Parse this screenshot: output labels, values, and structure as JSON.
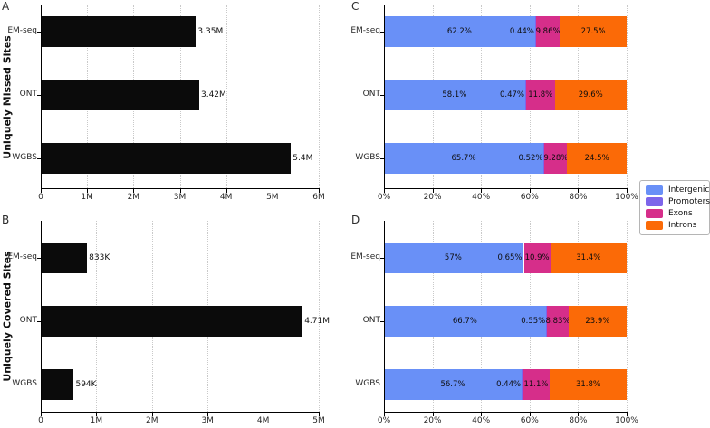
{
  "figure": {
    "background": "#ffffff"
  },
  "panels": {
    "A": {
      "letter": "A",
      "ylabel": "Uniquely Missed Sites"
    },
    "B": {
      "letter": "B",
      "ylabel": "Uniquely Covered Sites"
    },
    "C": {
      "letter": "C"
    },
    "D": {
      "letter": "D"
    }
  },
  "colors": {
    "bar_black": "#0b0b0b",
    "intergenic": "#6990F7",
    "promoters": "#7D65EA",
    "exons": "#D62E8A",
    "introns": "#FB6A07",
    "grid": "#c9c9c9"
  },
  "legend": {
    "entries": [
      {
        "label": "Intergenic",
        "color": "#6990F7"
      },
      {
        "label": "Promoters",
        "color": "#7D65EA"
      },
      {
        "label": "Exons",
        "color": "#D62E8A"
      },
      {
        "label": "Introns",
        "color": "#FB6A07"
      }
    ]
  },
  "chart_data": [
    {
      "id": "A",
      "type": "bar",
      "orientation": "horizontal",
      "title": "Uniquely Missed Sites",
      "categories": [
        "EM-seq",
        "ONT",
        "WGBS"
      ],
      "values": [
        3350000,
        3420000,
        5400000
      ],
      "value_labels": [
        "3.35M",
        "3.42M",
        "5.4M"
      ],
      "xlim": [
        0,
        6000000
      ],
      "xtick_labels": [
        "0",
        "1M",
        "2M",
        "3M",
        "4M",
        "5M",
        "6M"
      ],
      "bar_color": "#0b0b0b",
      "grid": true
    },
    {
      "id": "B",
      "type": "bar",
      "orientation": "horizontal",
      "title": "Uniquely Covered Sites",
      "categories": [
        "EM-seq",
        "ONT",
        "WGBS"
      ],
      "values": [
        833000,
        4710000,
        594000
      ],
      "value_labels": [
        "833K",
        "4.71M",
        "594K"
      ],
      "xlim": [
        0,
        5000000
      ],
      "xtick_labels": [
        "0",
        "1M",
        "2M",
        "3M",
        "4M",
        "5M"
      ],
      "bar_color": "#0b0b0b",
      "grid": true
    },
    {
      "id": "C",
      "type": "stacked-bar",
      "orientation": "horizontal",
      "categories": [
        "EM-seq",
        "ONT",
        "WGBS"
      ],
      "xlim": [
        0,
        100
      ],
      "xtick_labels": [
        "0%",
        "20%",
        "40%",
        "60%",
        "80%",
        "100%"
      ],
      "grid": true,
      "series": [
        {
          "name": "Intergenic",
          "color": "#6990F7",
          "values": [
            62.2,
            58.1,
            65.7
          ],
          "labels": [
            "62.2%",
            "58.1%",
            "65.7%"
          ]
        },
        {
          "name": "Promoters",
          "color": "#7D65EA",
          "values": [
            0.44,
            0.47,
            0.52
          ],
          "labels": [
            "0.44%",
            "0.47%",
            "0.52%"
          ]
        },
        {
          "name": "Exons",
          "color": "#D62E8A",
          "values": [
            9.86,
            11.8,
            9.28
          ],
          "labels": [
            "9.86%",
            "11.8%",
            "9.28%"
          ]
        },
        {
          "name": "Introns",
          "color": "#FB6A07",
          "values": [
            27.5,
            29.6,
            24.5
          ],
          "labels": [
            "27.5%",
            "29.6%",
            "24.5%"
          ]
        }
      ]
    },
    {
      "id": "D",
      "type": "stacked-bar",
      "orientation": "horizontal",
      "categories": [
        "EM-seq",
        "ONT",
        "WGBS"
      ],
      "xlim": [
        0,
        100
      ],
      "xtick_labels": [
        "0%",
        "20%",
        "40%",
        "60%",
        "80%",
        "100%"
      ],
      "grid": true,
      "series": [
        {
          "name": "Intergenic",
          "color": "#6990F7",
          "values": [
            57,
            66.7,
            56.7
          ],
          "labels": [
            "57%",
            "66.7%",
            "56.7%"
          ]
        },
        {
          "name": "Promoters",
          "color": "#7D65EA",
          "values": [
            0.65,
            0.55,
            0.44
          ],
          "labels": [
            "0.65%",
            "0.55%",
            "0.44%"
          ]
        },
        {
          "name": "Exons",
          "color": "#D62E8A",
          "values": [
            10.9,
            8.83,
            11.1
          ],
          "labels": [
            "10.9%",
            "8.83%",
            "11.1%"
          ]
        },
        {
          "name": "Introns",
          "color": "#FB6A07",
          "values": [
            31.4,
            23.9,
            31.8
          ],
          "labels": [
            "31.4%",
            "23.9%",
            "31.8%"
          ]
        }
      ]
    }
  ]
}
